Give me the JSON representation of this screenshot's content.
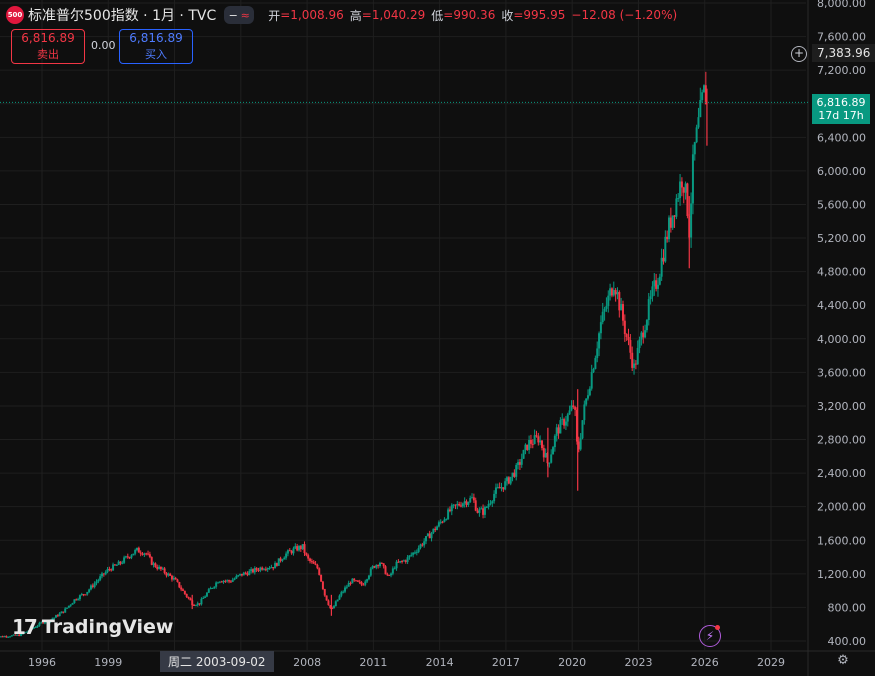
{
  "header": {
    "logo_text": "500",
    "title": "标准普尔500指数 · 1月 · TVC",
    "toggle_left": "−",
    "toggle_right": "≈",
    "open_label": "开",
    "open_value": "=1,008.96",
    "high_label": "高",
    "high_value": "=1,040.29",
    "low_label": "低",
    "low_value": "=990.36",
    "close_label": "收",
    "close_value": "=995.95",
    "change": "−12.08 (−1.20%)"
  },
  "trade": {
    "sell_price": "6,816.89",
    "sell_label": "卖出",
    "spread": "0.00",
    "buy_price": "6,816.89",
    "buy_label": "买入"
  },
  "price_tags": {
    "crosshair_price": "7,383.96",
    "last_price": "6,816.89",
    "countdown": "17d 17h"
  },
  "crosshair_date": "周二 2003-09-02",
  "watermark": "TradingView",
  "colors": {
    "up": "#089981",
    "down": "#f23645",
    "last_line": "#089981",
    "bg": "#0f0f0f"
  },
  "icons": {
    "plus": "plus-circle-icon",
    "bolt": "lightning-icon",
    "settings": "gear-icon"
  },
  "chart_data": {
    "type": "candlestick",
    "title": "标准普尔500指数 · 1月 · TVC",
    "y_ticks": [
      "400.00",
      "800.00",
      "1,200.00",
      "1,600.00",
      "2,000.00",
      "2,400.00",
      "2,800.00",
      "3,200.00",
      "3,600.00",
      "4,000.00",
      "4,400.00",
      "4,800.00",
      "5,200.00",
      "5,600.00",
      "6,000.00",
      "6,400.00",
      "6,800.00",
      "7,200.00",
      "7,600.00",
      "8,000.00"
    ],
    "x_ticks": [
      "1996",
      "1999",
      "2002",
      "2005",
      "2008",
      "2011",
      "2014",
      "2017",
      "2020",
      "2023",
      "2026",
      "2029"
    ],
    "ylim": [
      400,
      8000
    ],
    "xlim": [
      1995.0,
      2030.3
    ],
    "grid": true,
    "last_price": 6816.89,
    "series_path": [
      [
        1993.8,
        445
      ],
      [
        1994.5,
        460
      ],
      [
        1995.0,
        470
      ],
      [
        1995.5,
        540
      ],
      [
        1996.0,
        620
      ],
      [
        1996.5,
        670
      ],
      [
        1997.0,
        760
      ],
      [
        1997.5,
        900
      ],
      [
        1998.0,
        980
      ],
      [
        1998.5,
        1120
      ],
      [
        1999.0,
        1250
      ],
      [
        1999.5,
        1320
      ],
      [
        2000.0,
        1430
      ],
      [
        2000.3,
        1480
      ],
      [
        2000.7,
        1450
      ],
      [
        2001.0,
        1320
      ],
      [
        2001.5,
        1230
      ],
      [
        2002.0,
        1130
      ],
      [
        2002.5,
        950
      ],
      [
        2002.8,
        850
      ],
      [
        2003.1,
        840
      ],
      [
        2003.5,
        980
      ],
      [
        2004.0,
        1130
      ],
      [
        2004.5,
        1110
      ],
      [
        2005.0,
        1190
      ],
      [
        2005.5,
        1230
      ],
      [
        2006.0,
        1280
      ],
      [
        2006.5,
        1290
      ],
      [
        2007.0,
        1430
      ],
      [
        2007.5,
        1500
      ],
      [
        2007.8,
        1520
      ],
      [
        2008.0,
        1380
      ],
      [
        2008.5,
        1260
      ],
      [
        2008.8,
        950
      ],
      [
        2009.1,
        760
      ],
      [
        2009.5,
        950
      ],
      [
        2010.0,
        1120
      ],
      [
        2010.5,
        1070
      ],
      [
        2011.0,
        1290
      ],
      [
        2011.3,
        1340
      ],
      [
        2011.7,
        1150
      ],
      [
        2012.0,
        1310
      ],
      [
        2012.5,
        1370
      ],
      [
        2013.0,
        1500
      ],
      [
        2013.5,
        1650
      ],
      [
        2014.0,
        1800
      ],
      [
        2014.5,
        1960
      ],
      [
        2015.0,
        2050
      ],
      [
        2015.5,
        2100
      ],
      [
        2015.7,
        1950
      ],
      [
        2016.0,
        1940
      ],
      [
        2016.5,
        2170
      ],
      [
        2017.0,
        2280
      ],
      [
        2017.5,
        2450
      ],
      [
        2018.0,
        2750
      ],
      [
        2018.5,
        2820
      ],
      [
        2018.9,
        2510
      ],
      [
        2019.3,
        2900
      ],
      [
        2019.8,
        3080
      ],
      [
        2020.1,
        3230
      ],
      [
        2020.25,
        2600
      ],
      [
        2020.5,
        3100
      ],
      [
        2020.9,
        3620
      ],
      [
        2021.3,
        4180
      ],
      [
        2021.9,
        4700
      ],
      [
        2022.4,
        4100
      ],
      [
        2022.8,
        3650
      ],
      [
        2023.2,
        4100
      ],
      [
        2023.6,
        4500
      ],
      [
        2023.9,
        4750
      ],
      [
        2024.3,
        5250
      ],
      [
        2024.8,
        5750
      ],
      [
        2025.0,
        5950
      ],
      [
        2025.2,
        5600
      ],
      [
        2025.3,
        5300
      ],
      [
        2025.5,
        6200
      ],
      [
        2025.9,
        6850
      ],
      [
        2026.0,
        6960
      ],
      [
        2026.1,
        6817
      ]
    ],
    "spikes": [
      {
        "x": 2020.25,
        "low": 2190,
        "high": 3400
      },
      {
        "x": 2025.3,
        "low": 4840,
        "high": 5700
      },
      {
        "x": 2026.1,
        "low": 6300,
        "high": 6980
      },
      {
        "x": 2009.1,
        "low": 700,
        "high": 950
      },
      {
        "x": 2002.8,
        "low": 780,
        "high": 950
      },
      {
        "x": 2018.9,
        "low": 2350,
        "high": 2940
      }
    ]
  }
}
